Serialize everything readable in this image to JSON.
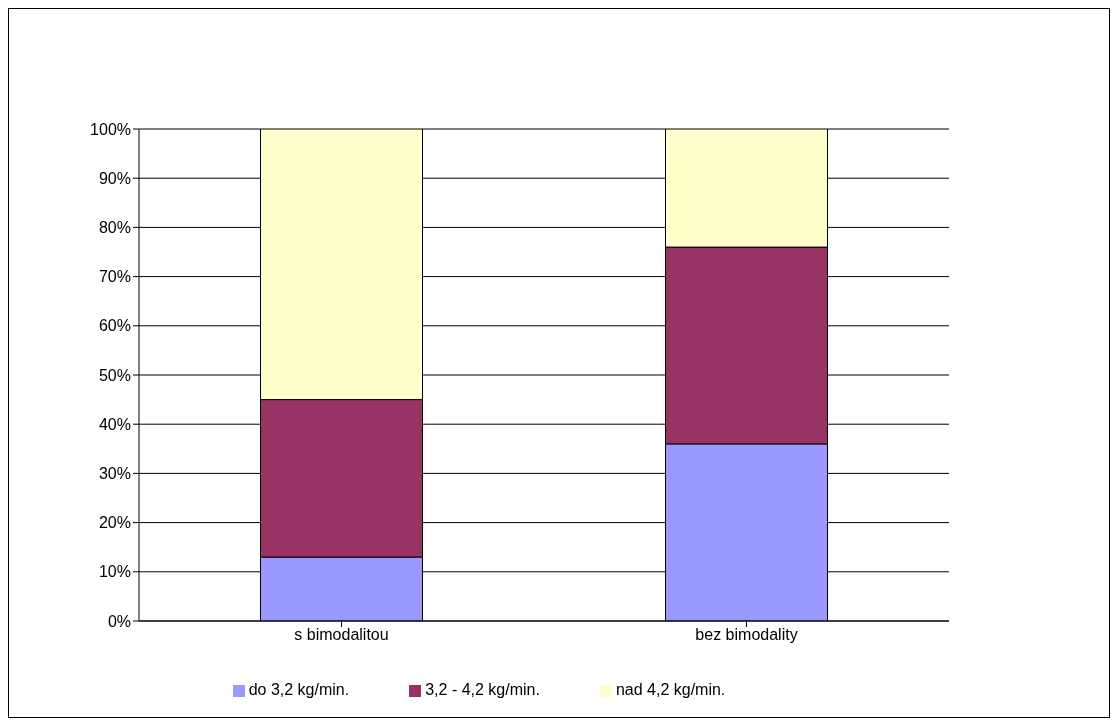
{
  "chart_data": {
    "type": "bar",
    "stacked": true,
    "categories": [
      "s bimodalitou",
      "bez bimodality"
    ],
    "series": [
      {
        "name": "do 3,2 kg/min.",
        "color": "#9999ff",
        "values": [
          13,
          36
        ]
      },
      {
        "name": "3,2 - 4,2 kg/min.",
        "color": "#993366",
        "values": [
          32,
          40
        ]
      },
      {
        "name": "nad 4,2 kg/min.",
        "color": "#ffffcc",
        "values": [
          55,
          24
        ]
      }
    ],
    "ylim": [
      0,
      100
    ],
    "yticks": [
      {
        "value": 0,
        "label": "0%"
      },
      {
        "value": 10,
        "label": "10%"
      },
      {
        "value": 20,
        "label": "20%"
      },
      {
        "value": 30,
        "label": "30%"
      },
      {
        "value": 40,
        "label": "40%"
      },
      {
        "value": 50,
        "label": "50%"
      },
      {
        "value": 60,
        "label": "60%"
      },
      {
        "value": 70,
        "label": "70%"
      },
      {
        "value": 80,
        "label": "80%"
      },
      {
        "value": 90,
        "label": "90%"
      },
      {
        "value": 100,
        "label": "100%"
      }
    ],
    "grid": "y",
    "legend": "bottom"
  }
}
